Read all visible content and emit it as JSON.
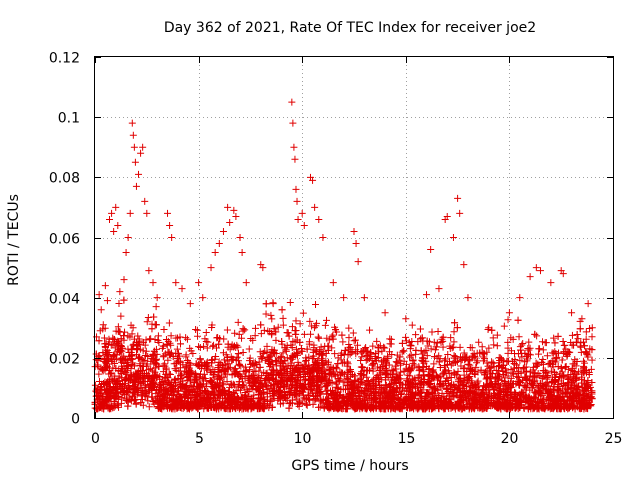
{
  "chart_data": {
    "type": "scatter",
    "title": "Day 362 of 2021, Rate Of TEC Index for receiver joe2",
    "xlabel": "GPS time / hours",
    "ylabel": "ROTI / TECUs",
    "xlim": [
      0,
      25
    ],
    "ylim": [
      0,
      0.12
    ],
    "xticks": [
      "0",
      "5",
      "10",
      "15",
      "20",
      "25"
    ],
    "yticks": [
      "0",
      "0.02",
      "0.04",
      "0.06",
      "0.08",
      "0.1",
      "0.12"
    ],
    "grid": true,
    "marker": "plus",
    "series_color": "#e00000",
    "series": [
      {
        "name": "ROTI",
        "points": [
          [
            0.2,
            0.041
          ],
          [
            0.3,
            0.036
          ],
          [
            0.4,
            0.031
          ],
          [
            0.5,
            0.044
          ],
          [
            0.6,
            0.039
          ],
          [
            0.7,
            0.066
          ],
          [
            0.8,
            0.068
          ],
          [
            0.9,
            0.062
          ],
          [
            1.0,
            0.07
          ],
          [
            1.1,
            0.064
          ],
          [
            1.2,
            0.042
          ],
          [
            1.4,
            0.046
          ],
          [
            1.5,
            0.055
          ],
          [
            1.6,
            0.06
          ],
          [
            1.7,
            0.068
          ],
          [
            1.8,
            0.098
          ],
          [
            1.85,
            0.094
          ],
          [
            1.9,
            0.09
          ],
          [
            1.95,
            0.085
          ],
          [
            2.0,
            0.077
          ],
          [
            2.1,
            0.081
          ],
          [
            2.2,
            0.088
          ],
          [
            2.3,
            0.09
          ],
          [
            2.4,
            0.072
          ],
          [
            2.5,
            0.068
          ],
          [
            2.6,
            0.049
          ],
          [
            2.8,
            0.045
          ],
          [
            3.0,
            0.04
          ],
          [
            3.5,
            0.068
          ],
          [
            3.6,
            0.064
          ],
          [
            3.7,
            0.06
          ],
          [
            3.9,
            0.045
          ],
          [
            4.2,
            0.043
          ],
          [
            4.6,
            0.038
          ],
          [
            5.0,
            0.045
          ],
          [
            5.2,
            0.04
          ],
          [
            5.6,
            0.05
          ],
          [
            5.8,
            0.055
          ],
          [
            6.0,
            0.058
          ],
          [
            6.2,
            0.062
          ],
          [
            6.4,
            0.07
          ],
          [
            6.5,
            0.065
          ],
          [
            6.7,
            0.069
          ],
          [
            6.8,
            0.067
          ],
          [
            7.0,
            0.06
          ],
          [
            7.1,
            0.055
          ],
          [
            7.3,
            0.045
          ],
          [
            8.0,
            0.051
          ],
          [
            8.1,
            0.05
          ],
          [
            8.6,
            0.038
          ],
          [
            9.5,
            0.105
          ],
          [
            9.55,
            0.098
          ],
          [
            9.6,
            0.09
          ],
          [
            9.65,
            0.086
          ],
          [
            9.7,
            0.076
          ],
          [
            9.75,
            0.072
          ],
          [
            9.8,
            0.066
          ],
          [
            10.0,
            0.068
          ],
          [
            10.1,
            0.064
          ],
          [
            10.4,
            0.08
          ],
          [
            10.5,
            0.079
          ],
          [
            10.6,
            0.07
          ],
          [
            10.8,
            0.066
          ],
          [
            11.0,
            0.06
          ],
          [
            11.5,
            0.045
          ],
          [
            12.0,
            0.04
          ],
          [
            12.5,
            0.062
          ],
          [
            12.6,
            0.058
          ],
          [
            12.7,
            0.052
          ],
          [
            13.0,
            0.04
          ],
          [
            14.0,
            0.035
          ],
          [
            15.0,
            0.033
          ],
          [
            16.0,
            0.041
          ],
          [
            16.2,
            0.056
          ],
          [
            16.6,
            0.043
          ],
          [
            16.9,
            0.066
          ],
          [
            17.0,
            0.067
          ],
          [
            17.3,
            0.06
          ],
          [
            17.5,
            0.073
          ],
          [
            17.6,
            0.068
          ],
          [
            17.8,
            0.051
          ],
          [
            18.0,
            0.04
          ],
          [
            19.0,
            0.03
          ],
          [
            20.0,
            0.035
          ],
          [
            20.5,
            0.04
          ],
          [
            21.0,
            0.047
          ],
          [
            21.3,
            0.05
          ],
          [
            21.5,
            0.049
          ],
          [
            22.0,
            0.045
          ],
          [
            22.5,
            0.049
          ],
          [
            22.6,
            0.048
          ],
          [
            23.0,
            0.035
          ],
          [
            23.5,
            0.033
          ],
          [
            23.8,
            0.038
          ],
          [
            24.0,
            0.03
          ]
        ]
      }
    ]
  }
}
